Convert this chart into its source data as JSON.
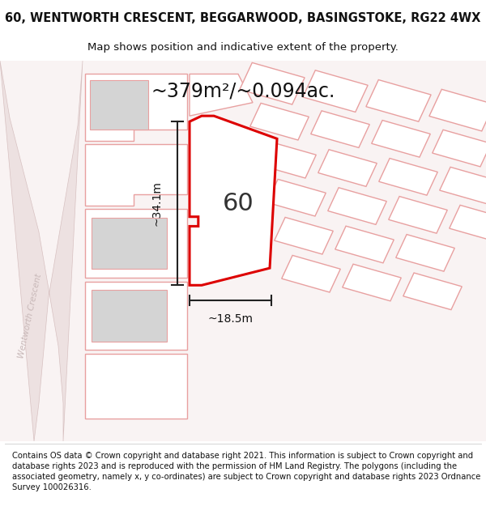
{
  "title": "60, WENTWORTH CRESCENT, BEGGARWOOD, BASINGSTOKE, RG22 4WX",
  "subtitle": "Map shows position and indicative extent of the property.",
  "area_text": "~379m²/~0.094ac.",
  "dim_height": "~34.1m",
  "dim_width": "~18.5m",
  "number_label": "60",
  "road_label": "Wentworth Crescent",
  "footer": "Contains OS data © Crown copyright and database right 2021. This information is subject to Crown copyright and database rights 2023 and is reproduced with the permission of HM Land Registry. The polygons (including the associated geometry, namely x, y co-ordinates) are subject to Crown copyright and database rights 2023 Ordnance Survey 100026316.",
  "bg_color": "#ffffff",
  "map_bg": "#ffffff",
  "building_color": "#d4d4d4",
  "plot_line_color": "#dd0000",
  "other_line_color": "#e8a0a0",
  "dim_line_color": "#222222",
  "text_color": "#111111",
  "road_text_color": "#c0b0b0",
  "title_fontsize": 10.5,
  "subtitle_fontsize": 9.5,
  "area_fontsize": 17,
  "label_fontsize": 22,
  "dim_fontsize": 10,
  "footer_fontsize": 7.2
}
